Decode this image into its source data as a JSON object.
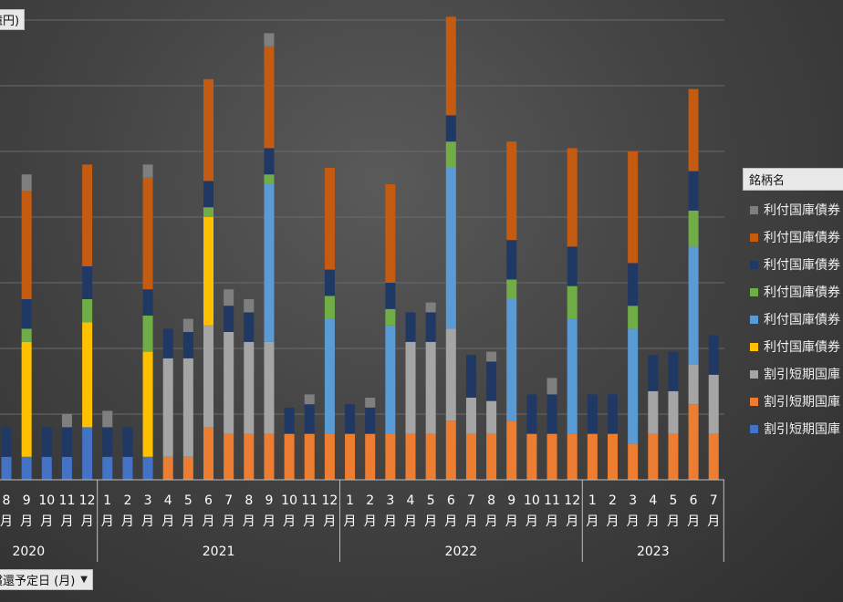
{
  "unit_label": "億円)",
  "x_field_label": "償還予定日 (月)",
  "legend": {
    "title": "銘柄名",
    "items": [
      {
        "label": "利付国庫債券",
        "color": "#7f7f7f"
      },
      {
        "label": "利付国庫債券",
        "color": "#c55a11"
      },
      {
        "label": "利付国庫債券",
        "color": "#203864"
      },
      {
        "label": "利付国庫債券",
        "color": "#70ad47"
      },
      {
        "label": "利付国庫債券",
        "color": "#5b9bd5"
      },
      {
        "label": "利付国庫債券",
        "color": "#ffc000"
      },
      {
        "label": "割引短期国庫",
        "color": "#a5a5a5"
      },
      {
        "label": "割引短期国庫",
        "color": "#ed7d31"
      },
      {
        "label": "割引短期国庫",
        "color": "#4472c4"
      }
    ]
  },
  "chart_data": {
    "type": "bar",
    "stacked": true,
    "ylim": [
      0,
      7
    ],
    "grid": true,
    "legend_position": "right",
    "year_groups": [
      {
        "label": "2020",
        "count": 5
      },
      {
        "label": "2021",
        "count": 12
      },
      {
        "label": "2022",
        "count": 12
      },
      {
        "label": "2023",
        "count": 7
      }
    ],
    "categories": [
      {
        "m": "8",
        "u": "月"
      },
      {
        "m": "9",
        "u": "月"
      },
      {
        "m": "10",
        "u": "月"
      },
      {
        "m": "11",
        "u": "月"
      },
      {
        "m": "12",
        "u": "月"
      },
      {
        "m": "1",
        "u": "月"
      },
      {
        "m": "2",
        "u": "月"
      },
      {
        "m": "3",
        "u": "月"
      },
      {
        "m": "4",
        "u": "月"
      },
      {
        "m": "5",
        "u": "月"
      },
      {
        "m": "6",
        "u": "月"
      },
      {
        "m": "7",
        "u": "月"
      },
      {
        "m": "8",
        "u": "月"
      },
      {
        "m": "9",
        "u": "月"
      },
      {
        "m": "10",
        "u": "月"
      },
      {
        "m": "11",
        "u": "月"
      },
      {
        "m": "12",
        "u": "月"
      },
      {
        "m": "1",
        "u": "月"
      },
      {
        "m": "2",
        "u": "月"
      },
      {
        "m": "3",
        "u": "月"
      },
      {
        "m": "4",
        "u": "月"
      },
      {
        "m": "5",
        "u": "月"
      },
      {
        "m": "6",
        "u": "月"
      },
      {
        "m": "7",
        "u": "月"
      },
      {
        "m": "8",
        "u": "月"
      },
      {
        "m": "9",
        "u": "月"
      },
      {
        "m": "10",
        "u": "月"
      },
      {
        "m": "11",
        "u": "月"
      },
      {
        "m": "12",
        "u": "月"
      },
      {
        "m": "1",
        "u": "月"
      },
      {
        "m": "2",
        "u": "月"
      },
      {
        "m": "3",
        "u": "月"
      },
      {
        "m": "4",
        "u": "月"
      },
      {
        "m": "5",
        "u": "月"
      },
      {
        "m": "6",
        "u": "月"
      },
      {
        "m": "7",
        "u": "月"
      }
    ],
    "series": [
      {
        "color": "#4472c4",
        "values": [
          0.35,
          0.35,
          0.35,
          0.35,
          0.8,
          0.35,
          0.35,
          0.35,
          0,
          0,
          0,
          0,
          0,
          0,
          0,
          0,
          0,
          0,
          0,
          0,
          0,
          0,
          0,
          0,
          0,
          0,
          0,
          0,
          0,
          0,
          0,
          0,
          0,
          0,
          0,
          0
        ]
      },
      {
        "color": "#ed7d31",
        "values": [
          0,
          0,
          0,
          0,
          0,
          0,
          0,
          0,
          0.35,
          0.35,
          0.8,
          0.7,
          0.7,
          0.7,
          0.7,
          0.7,
          0.7,
          0.7,
          0.7,
          0.7,
          0.7,
          0.7,
          0.9,
          0.7,
          0.7,
          0.9,
          0.7,
          0.7,
          0.7,
          0.7,
          0.7,
          0.55,
          0.7,
          0.7,
          1.15,
          0.7
        ]
      },
      {
        "color": "#a5a5a5",
        "values": [
          0,
          0,
          0,
          0,
          0,
          0,
          0,
          0,
          1.5,
          1.5,
          1.55,
          1.55,
          1.4,
          1.4,
          0,
          0,
          0,
          0,
          0,
          0,
          1.4,
          1.4,
          1.4,
          0.55,
          0.5,
          0,
          0,
          0,
          0,
          0,
          0,
          0,
          0.65,
          0.65,
          0.6,
          0.9
        ]
      },
      {
        "color": "#ffc000",
        "values": [
          0,
          1.75,
          0,
          0,
          1.6,
          0,
          0,
          1.6,
          0,
          0,
          1.65,
          0,
          0,
          0,
          0,
          0,
          0,
          0,
          0,
          0,
          0,
          0,
          0,
          0,
          0,
          0,
          0,
          0,
          0,
          0,
          0,
          0,
          0,
          0,
          0,
          0
        ]
      },
      {
        "color": "#5b9bd5",
        "values": [
          0,
          0,
          0,
          0,
          0,
          0,
          0,
          0,
          0,
          0,
          0,
          0,
          0,
          2.4,
          0,
          0,
          1.75,
          0,
          0,
          1.65,
          0,
          0,
          2.45,
          0,
          0,
          1.85,
          0,
          0,
          1.75,
          0,
          0,
          1.75,
          0,
          0,
          1.8,
          0
        ]
      },
      {
        "color": "#70ad47",
        "values": [
          0,
          0.2,
          0,
          0,
          0.35,
          0,
          0,
          0.55,
          0,
          0,
          0.15,
          0,
          0,
          0.15,
          0,
          0,
          0.35,
          0,
          0,
          0.25,
          0,
          0,
          0.4,
          0,
          0,
          0.3,
          0,
          0,
          0.5,
          0,
          0,
          0.35,
          0,
          0,
          0.55,
          0
        ]
      },
      {
        "color": "#203864",
        "values": [
          0.45,
          0.45,
          0.45,
          0.45,
          0.5,
          0.45,
          0.45,
          0.4,
          0.45,
          0.4,
          0.4,
          0.4,
          0.45,
          0.4,
          0.4,
          0.45,
          0.4,
          0.45,
          0.4,
          0.4,
          0.45,
          0.45,
          0.4,
          0.65,
          0.6,
          0.6,
          0.6,
          0.6,
          0.6,
          0.6,
          0.6,
          0.65,
          0.55,
          0.6,
          0.6,
          0.6
        ]
      },
      {
        "color": "#c55a11",
        "values": [
          0,
          1.65,
          0,
          0,
          1.55,
          0,
          0,
          1.7,
          0,
          0,
          1.55,
          0,
          0,
          1.55,
          0,
          0,
          1.55,
          0,
          0,
          1.5,
          0,
          0,
          1.5,
          0,
          0,
          1.5,
          0,
          0,
          1.5,
          0,
          0,
          1.7,
          0,
          0,
          1.25,
          0
        ]
      },
      {
        "color": "#7f7f7f",
        "values": [
          0,
          0.25,
          0,
          0.2,
          0,
          0.25,
          0,
          0.2,
          0,
          0.2,
          0,
          0.25,
          0.2,
          0.2,
          0,
          0.15,
          0,
          0,
          0.15,
          0,
          0,
          0.15,
          0,
          0,
          0.15,
          0,
          0,
          0.25,
          0,
          0,
          0,
          0,
          0,
          0,
          0,
          0
        ]
      }
    ]
  }
}
